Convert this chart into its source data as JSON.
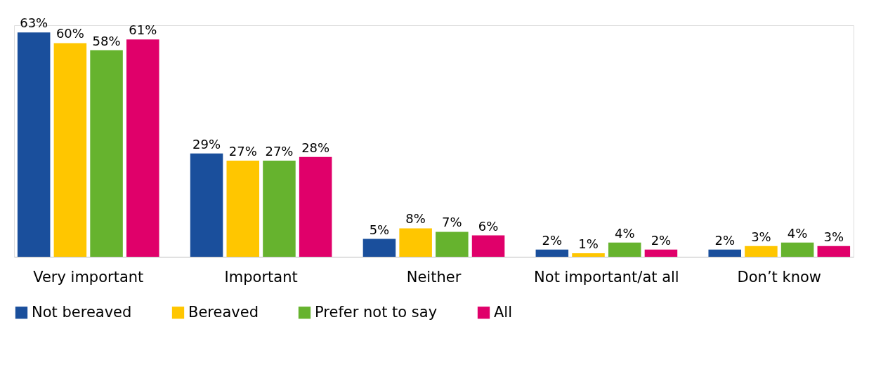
{
  "chart_data": {
    "type": "bar",
    "categories": [
      "Very important",
      "Important",
      "Neither",
      "Not important/at all",
      "Don’t know"
    ],
    "series": [
      {
        "name": "Not bereaved",
        "color": "#1a4f9c",
        "values": [
          63,
          29,
          5,
          2,
          2
        ],
        "value_labels": [
          "63%",
          "29%",
          "5%",
          "2%",
          "2%"
        ]
      },
      {
        "name": "Bereaved",
        "color": "#ffc600",
        "values": [
          60,
          27,
          8,
          1,
          3
        ],
        "value_labels": [
          "60%",
          "27%",
          "8%",
          "1%",
          "3%"
        ]
      },
      {
        "name": "Prefer not to say",
        "color": "#66b32e",
        "values": [
          58,
          27,
          7,
          4,
          4
        ],
        "value_labels": [
          "58%",
          "27%",
          "7%",
          "4%",
          "4%"
        ]
      },
      {
        "name": "All",
        "color": "#e0006a",
        "values": [
          61,
          28,
          6,
          2,
          3
        ],
        "value_labels": [
          "61%",
          "28%",
          "6%",
          "2%",
          "3%"
        ]
      }
    ],
    "legend": "bottom",
    "grid": false
  }
}
